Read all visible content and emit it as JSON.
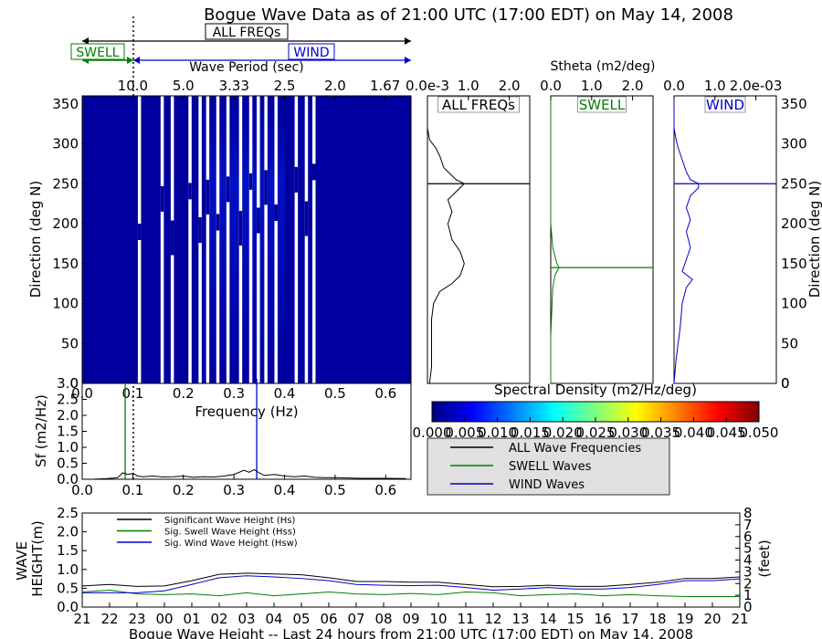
{
  "title": "Bogue Wave Data as of 21:00 UTC (17:00 EDT) on May 14, 2008",
  "bands": {
    "all_label": "ALL FREQs",
    "swell_label": "SWELL",
    "wind_label": "WIND",
    "colors": {
      "all": "#000000",
      "swell": "#007f00",
      "wind": "#0000cc"
    }
  },
  "chart_data": [
    {
      "id": "directional-spectrum",
      "type": "heatmap",
      "top_axis_label": "Wave Period (sec)",
      "top_ticks": [
        "10.0",
        "5.0",
        "3.33",
        "2.5",
        "2.0",
        "1.67"
      ],
      "xlim": [
        0.0,
        0.65
      ],
      "ylim": [
        0,
        360
      ],
      "ylabel": "Direction (deg N)",
      "y_ticks": [
        0,
        50,
        100,
        150,
        200,
        250,
        300,
        350
      ],
      "colormap": "jet",
      "background_value": 0.0,
      "period_marker_freq": 0.1,
      "energy_band": {
        "freq_range": [
          0.25,
          0.4
        ],
        "peak_freq": 0.34,
        "peak_dir": 250
      },
      "gap_columns_freq": [
        0.11,
        0.155,
        0.175,
        0.21,
        0.23,
        0.245,
        0.265,
        0.285,
        0.31,
        0.33,
        0.345,
        0.36,
        0.38,
        0.42,
        0.44,
        0.455
      ]
    },
    {
      "id": "frequency-spectrum",
      "type": "line",
      "xlabel": "Frequency (Hz)",
      "ylabel": "Sf (m2/Hz)",
      "xlim": [
        0.0,
        0.65
      ],
      "ylim": [
        0.0,
        3.0
      ],
      "x_ticks": [
        "0.0",
        "0.1",
        "0.2",
        "0.3",
        "0.4",
        "0.5",
        "0.6"
      ],
      "y_ticks": [
        "0.0",
        "0.5",
        "1.0",
        "1.5",
        "2.0",
        "2.5",
        "3.0"
      ],
      "x": [
        0.02,
        0.05,
        0.07,
        0.08,
        0.09,
        0.1,
        0.11,
        0.12,
        0.14,
        0.16,
        0.18,
        0.2,
        0.22,
        0.24,
        0.26,
        0.28,
        0.3,
        0.32,
        0.33,
        0.34,
        0.35,
        0.36,
        0.38,
        0.4,
        0.42,
        0.44,
        0.46,
        0.48,
        0.5,
        0.55,
        0.6,
        0.64
      ],
      "values": [
        0.0,
        0.02,
        0.05,
        0.2,
        0.15,
        0.18,
        0.1,
        0.08,
        0.1,
        0.07,
        0.08,
        0.1,
        0.06,
        0.08,
        0.07,
        0.1,
        0.15,
        0.28,
        0.22,
        0.3,
        0.2,
        0.12,
        0.15,
        0.1,
        0.08,
        0.1,
        0.06,
        0.05,
        0.05,
        0.03,
        0.03,
        0.02
      ],
      "markers": [
        {
          "name": "swell_peak",
          "freq": 0.085,
          "color": "#007f00"
        },
        {
          "name": "wind_peak",
          "freq": 0.345,
          "color": "#0000cc"
        },
        {
          "name": "separation",
          "freq": 0.1,
          "color": "#000000",
          "dotted": true
        }
      ]
    },
    {
      "id": "stheta-all",
      "type": "line",
      "panel_label": "ALL FREQs",
      "top_ticks": [
        "0.0e-3",
        "1.0",
        "2.0"
      ],
      "xlim": [
        0.0,
        0.0025
      ],
      "ylim": [
        0,
        360
      ],
      "peak_dir": 250,
      "color": "#000000",
      "direction": [
        0,
        20,
        50,
        80,
        100,
        115,
        125,
        135,
        150,
        165,
        180,
        200,
        215,
        230,
        245,
        250,
        255,
        270,
        285,
        295,
        305,
        320,
        340,
        360
      ],
      "values": [
        5e-05,
        0.0001,
        0.0001,
        0.0001,
        0.00015,
        0.0003,
        0.0006,
        0.0008,
        0.0009,
        0.0008,
        0.0006,
        0.0005,
        0.0006,
        0.0005,
        0.0008,
        0.0009,
        0.0007,
        0.0004,
        0.0003,
        0.0002,
        5e-05,
        0.0,
        0.0,
        0.0
      ]
    },
    {
      "id": "stheta-swell",
      "type": "line",
      "panel_label": "SWELL",
      "top_ticks": [
        "0.0",
        "1.0",
        "2.0"
      ],
      "xlim": [
        0.0,
        0.0025
      ],
      "ylim": [
        0,
        360
      ],
      "peak_dir": 145,
      "color": "#007f00",
      "direction": [
        0,
        60,
        120,
        135,
        140,
        145,
        150,
        160,
        170,
        200,
        360
      ],
      "values": [
        0.0,
        0.0,
        5e-05,
        0.0001,
        0.00015,
        0.0002,
        0.00015,
        0.0001,
        5e-05,
        0.0,
        0.0
      ]
    },
    {
      "id": "stheta-wind",
      "type": "line",
      "panel_label": "WIND",
      "top_ticks": [
        "0.0",
        "1.0",
        "2.0e-03"
      ],
      "xlim": [
        0.0,
        0.0025
      ],
      "ylim": [
        0,
        360
      ],
      "peak_dir": 250,
      "color": "#0000cc",
      "direction": [
        0,
        30,
        70,
        100,
        120,
        130,
        140,
        155,
        170,
        190,
        205,
        220,
        235,
        245,
        250,
        255,
        265,
        280,
        295,
        305,
        320,
        360
      ],
      "values": [
        0.0,
        5e-05,
        0.00015,
        0.0002,
        0.0003,
        0.00045,
        0.0002,
        0.0003,
        0.0004,
        0.0003,
        0.0004,
        0.0003,
        0.0004,
        0.0006,
        0.0006,
        0.0004,
        0.0003,
        0.0002,
        0.0001,
        5e-05,
        0.0,
        0.0
      ]
    },
    {
      "id": "colorbar",
      "type": "heatmap",
      "label": "Spectral Density (m2/Hz/deg)",
      "range": [
        0.0,
        0.05
      ],
      "ticks": [
        "0.000",
        "0.005",
        "0.010",
        "0.015",
        "0.020",
        "0.025",
        "0.030",
        "0.035",
        "0.040",
        "0.045",
        "0.050"
      ]
    },
    {
      "id": "wave-height-24h",
      "type": "line",
      "xlabel": "Bogue Wave Height -- Last 24 hours from 21:00 UTC (17:00 EDT) on May 14, 2008",
      "ylabel": "WAVE HEIGHT(m)",
      "ylabel2": "(feet)",
      "ylim": [
        0.0,
        2.5
      ],
      "ylim2": [
        0,
        8
      ],
      "y_ticks": [
        "0.0",
        "0.5",
        "1.0",
        "1.5",
        "2.0",
        "2.5"
      ],
      "y2_ticks": [
        "0",
        "1",
        "2",
        "3",
        "4",
        "5",
        "6",
        "7",
        "8"
      ],
      "categories": [
        "21",
        "22",
        "23",
        "00",
        "01",
        "02",
        "03",
        "04",
        "05",
        "06",
        "07",
        "08",
        "09",
        "10",
        "11",
        "12",
        "13",
        "14",
        "15",
        "16",
        "17",
        "18",
        "19",
        "20",
        "21"
      ],
      "series": [
        {
          "name": "Significant Wave Height (Hs)",
          "color": "#000000",
          "values": [
            0.56,
            0.6,
            0.55,
            0.56,
            0.7,
            0.87,
            0.9,
            0.88,
            0.86,
            0.78,
            0.68,
            0.68,
            0.66,
            0.66,
            0.6,
            0.54,
            0.55,
            0.58,
            0.55,
            0.55,
            0.6,
            0.66,
            0.76,
            0.76,
            0.8
          ]
        },
        {
          "name": "Sig. Swell Wave Height (Hss)",
          "color": "#007f00",
          "values": [
            0.4,
            0.45,
            0.35,
            0.33,
            0.35,
            0.3,
            0.38,
            0.3,
            0.35,
            0.4,
            0.35,
            0.33,
            0.36,
            0.33,
            0.4,
            0.38,
            0.3,
            0.33,
            0.35,
            0.3,
            0.33,
            0.3,
            0.28,
            0.28,
            0.28
          ]
        },
        {
          "name": "Sig. Wind Wave Height (Hsw)",
          "color": "#0000cc",
          "values": [
            0.38,
            0.38,
            0.38,
            0.43,
            0.6,
            0.78,
            0.83,
            0.8,
            0.76,
            0.7,
            0.6,
            0.58,
            0.57,
            0.58,
            0.52,
            0.45,
            0.48,
            0.52,
            0.48,
            0.48,
            0.52,
            0.6,
            0.7,
            0.7,
            0.75
          ]
        }
      ]
    }
  ],
  "legend_main": [
    {
      "label": "ALL Wave Frequencies",
      "color": "#000000"
    },
    {
      "label": "SWELL Waves",
      "color": "#007f00"
    },
    {
      "label": "WIND Waves",
      "color": "#0000cc"
    }
  ]
}
